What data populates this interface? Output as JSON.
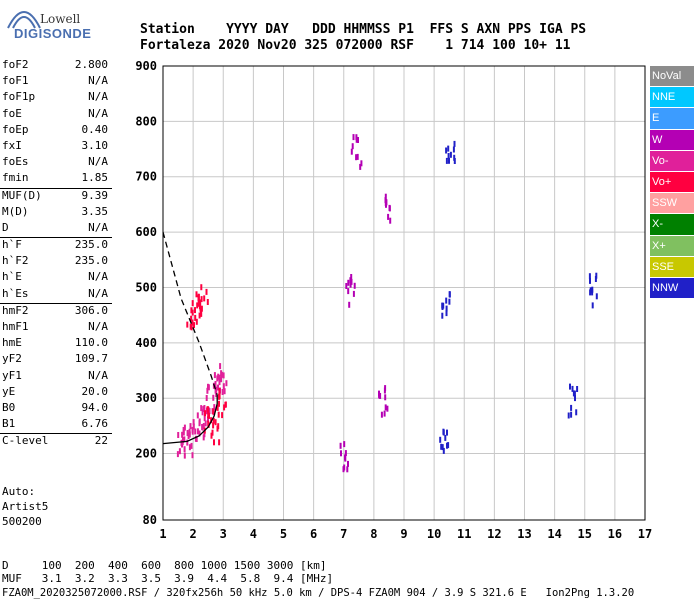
{
  "logo": {
    "top": "Lowell",
    "bottom": "DIGISONDE"
  },
  "header": {
    "labels_line": "Station    YYYY DAY   DDD HHMMSS P1  FFS S AXN PPS IGA PS",
    "values_line": "Fortaleza 2020 Nov20 325 072000 RSF    1 714 100 10+ 11"
  },
  "params": [
    {
      "label": "foF2",
      "value": "2.800"
    },
    {
      "label": "foF1",
      "value": "N/A"
    },
    {
      "label": "foF1p",
      "value": "N/A"
    },
    {
      "label": "foE",
      "value": "N/A"
    },
    {
      "label": "foEp",
      "value": "0.40"
    },
    {
      "label": "fxI",
      "value": "3.10"
    },
    {
      "label": "foEs",
      "value": "N/A"
    },
    {
      "label": "fmin",
      "value": "1.85"
    },
    {
      "label": "MUF(D)",
      "value": "9.39",
      "sep": true
    },
    {
      "label": "M(D)",
      "value": "3.35"
    },
    {
      "label": "D",
      "value": "N/A"
    },
    {
      "label": "h`F",
      "value": "235.0",
      "sep": true
    },
    {
      "label": "h`F2",
      "value": "235.0"
    },
    {
      "label": "h`E",
      "value": "N/A"
    },
    {
      "label": "h`Es",
      "value": "N/A"
    },
    {
      "label": "hmF2",
      "value": "306.0",
      "sep": true
    },
    {
      "label": "hmF1",
      "value": "N/A"
    },
    {
      "label": "hmE",
      "value": "110.0"
    },
    {
      "label": "yF2",
      "value": "109.7"
    },
    {
      "label": "yF1",
      "value": "N/A"
    },
    {
      "label": "yE",
      "value": "20.0"
    },
    {
      "label": "B0",
      "value": "94.0"
    },
    {
      "label": "B1",
      "value": "6.76"
    },
    {
      "label": "C-level",
      "value": "22",
      "sep": true
    }
  ],
  "auto": {
    "line1": "Auto:",
    "line2": "Artist5",
    "line3": "500200"
  },
  "legend": [
    {
      "label": "NoVal",
      "color": "#8c8c8c"
    },
    {
      "label": "NNE",
      "color": "#00c8ff"
    },
    {
      "label": "E",
      "color": "#3c9cff"
    },
    {
      "label": "W",
      "color": "#b400b4"
    },
    {
      "label": "Vo-",
      "color": "#e0209a"
    },
    {
      "label": "Vo+",
      "color": "#ff0040"
    },
    {
      "label": "SSW",
      "color": "#ffa0a0"
    },
    {
      "label": "X-",
      "color": "#008000"
    },
    {
      "label": "X+",
      "color": "#80c060"
    },
    {
      "label": "SSE",
      "color": "#c8c800"
    },
    {
      "label": "NNW",
      "color": "#2020c8"
    }
  ],
  "footer": {
    "line1": "D     100  200  400  600  800 1000 1500 3000 [km]",
    "line2": "MUF   3.1  3.2  3.3  3.5  3.9  4.4  5.8  9.4 [MHz]",
    "line3": "FZA0M_2020325072000.RSF / 320fx256h 50 kHz 5.0 km / DPS-4 FZA0M 904 / 3.9 S 321.6 E   Ion2Png 1.3.20"
  },
  "chart_data": {
    "type": "scatter",
    "xlim": [
      1,
      17
    ],
    "ylim": [
      80,
      900
    ],
    "x_ticks": [
      1,
      2,
      3,
      4,
      5,
      6,
      7,
      8,
      9,
      10,
      11,
      12,
      13,
      14,
      15,
      16,
      17
    ],
    "y_ticks": [
      80,
      200,
      300,
      400,
      500,
      600,
      700,
      800,
      900
    ],
    "grid": true,
    "curves": [
      {
        "name": "profile",
        "style": "solid",
        "x": [
          1.0,
          1.8,
          2.2,
          2.5,
          2.7,
          2.8,
          2.8
        ],
        "y": [
          218,
          222,
          232,
          248,
          268,
          290,
          306
        ]
      },
      {
        "name": "topside",
        "style": "dashed",
        "x": [
          1.0,
          1.6,
          2.2,
          2.6,
          2.8
        ],
        "y": [
          600,
          480,
          400,
          340,
          306
        ]
      }
    ],
    "echo_series": [
      {
        "color": "#e0209a",
        "x": [
          1.6,
          1.8,
          2.0,
          2.2,
          2.4,
          2.6,
          2.8,
          3.0
        ],
        "y": [
          225,
          228,
          240,
          260,
          280,
          300,
          320,
          340
        ]
      },
      {
        "color": "#ff0040",
        "x": [
          1.9,
          2.1,
          2.3,
          2.5,
          2.7,
          2.9
        ],
        "y": [
          460,
          470,
          480,
          260,
          250,
          300
        ]
      },
      {
        "color": "#b400b4",
        "x": [
          7.0,
          7.2,
          7.4,
          8.3,
          8.5
        ],
        "y": [
          200,
          500,
          750,
          300,
          650
        ]
      },
      {
        "color": "#2020c8",
        "x": [
          10.3,
          10.4,
          10.5,
          14.6,
          15.3
        ],
        "y": [
          230,
          470,
          750,
          300,
          500
        ]
      }
    ]
  }
}
